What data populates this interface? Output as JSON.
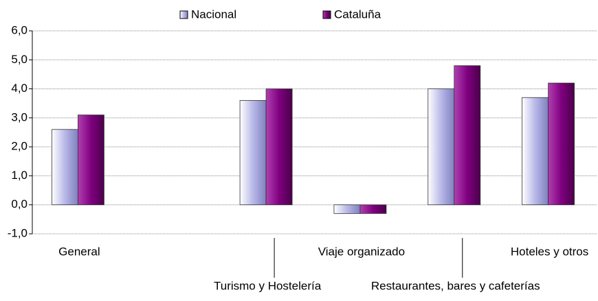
{
  "chart_data": {
    "type": "bar",
    "categories": [
      "General",
      null,
      "Turismo y Hostelería",
      "Viaje organizado",
      "Restaurantes, bares y cafeterías",
      "Hoteles y otros"
    ],
    "series": [
      {
        "name": "Nacional",
        "color": "#b8b8e8",
        "values": [
          2.6,
          null,
          3.6,
          -0.3,
          4.0,
          3.7
        ]
      },
      {
        "name": "Cataluña",
        "color": "#800080",
        "values": [
          3.1,
          null,
          4.0,
          -0.3,
          4.8,
          4.2
        ]
      }
    ],
    "ylim": [
      -1,
      6
    ],
    "yticks": [
      {
        "value": -1,
        "label": "-1,0"
      },
      {
        "value": 0,
        "label": "0,0"
      },
      {
        "value": 1,
        "label": "1,0"
      },
      {
        "value": 2,
        "label": "2,0"
      },
      {
        "value": 3,
        "label": "3,0"
      },
      {
        "value": 4,
        "label": "4,0"
      },
      {
        "value": 5,
        "label": "5,0"
      },
      {
        "value": 6,
        "label": "6,0"
      }
    ],
    "grid": true,
    "legend": "top"
  }
}
